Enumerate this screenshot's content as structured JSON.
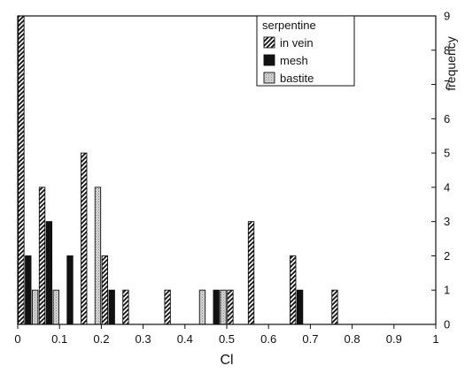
{
  "chart_data": {
    "type": "bar",
    "xlabel": "Cl",
    "ylabel": "frequency",
    "xlim": [
      0,
      1
    ],
    "ylim": [
      0,
      9
    ],
    "x_ticks": [
      "0",
      "0.1",
      "0.2",
      "0.3",
      "0.4",
      "0.5",
      "0.6",
      "0.7",
      "0.8",
      "0.9",
      "1"
    ],
    "y_ticks": [
      "0",
      "1",
      "2",
      "3",
      "4",
      "5",
      "6",
      "7",
      "8",
      "9"
    ],
    "bin_width": 0.05,
    "legend": {
      "title": "serpentine",
      "placement": "top-right"
    },
    "series": [
      {
        "name": "in vein",
        "pattern": "diagonal-hatch",
        "x": [
          0.0,
          0.05,
          0.15,
          0.2,
          0.25,
          0.35,
          0.5,
          0.55,
          0.65,
          0.75
        ],
        "values": [
          9,
          4,
          5,
          2,
          1,
          1,
          1,
          3,
          2,
          1
        ]
      },
      {
        "name": "mesh",
        "pattern": "solid-black",
        "x": [
          0.0,
          0.05,
          0.1,
          0.2,
          0.45,
          0.65
        ],
        "values": [
          2,
          3,
          2,
          1,
          1,
          1
        ]
      },
      {
        "name": "bastite",
        "pattern": "light-stipple",
        "x": [
          0.0,
          0.05,
          0.15,
          0.4,
          0.45
        ],
        "values": [
          1,
          1,
          4,
          1,
          1
        ]
      }
    ]
  }
}
